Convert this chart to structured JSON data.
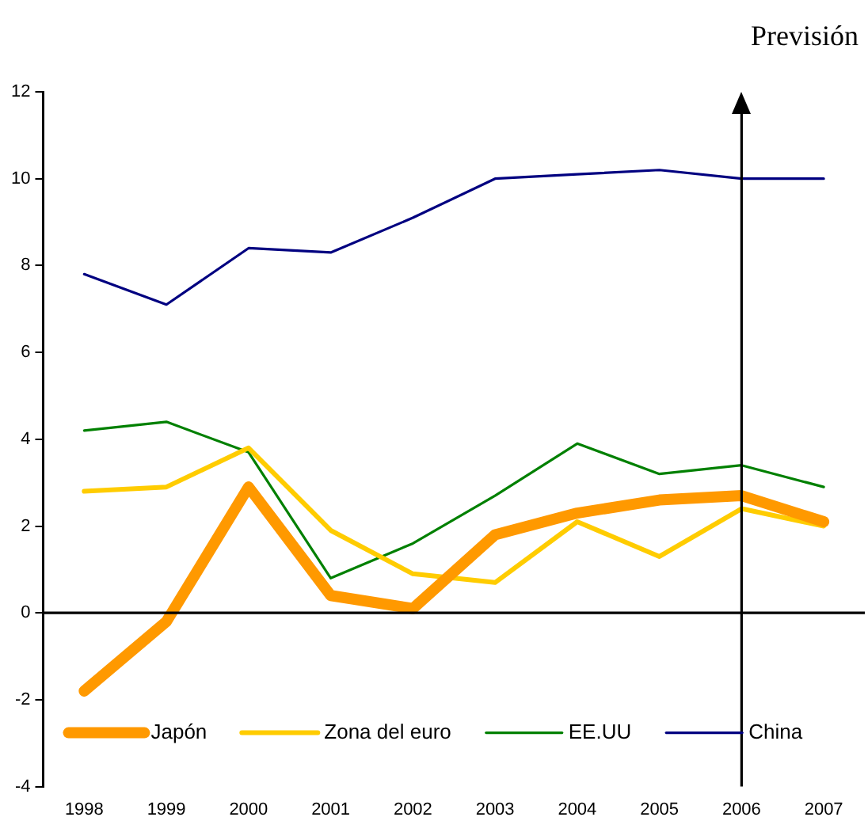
{
  "chart_data": {
    "type": "line",
    "categories": [
      "1998",
      "1999",
      "2000",
      "2001",
      "2002",
      "2003",
      "2004",
      "2005",
      "2006",
      "2007"
    ],
    "series": [
      {
        "name": "Japón",
        "color": "#ff9900",
        "values": [
          -1.8,
          -0.2,
          2.9,
          0.4,
          0.1,
          1.8,
          2.3,
          2.6,
          2.7,
          2.1
        ]
      },
      {
        "name": "Zona del euro",
        "color": "#ffcc00",
        "values": [
          2.8,
          2.9,
          3.8,
          1.9,
          0.9,
          0.7,
          2.1,
          1.3,
          2.4,
          2.0
        ]
      },
      {
        "name": "EE.UU",
        "color": "#008000",
        "values": [
          4.2,
          4.4,
          3.7,
          0.8,
          1.6,
          2.7,
          3.9,
          3.2,
          3.4,
          2.9
        ]
      },
      {
        "name": "China",
        "color": "#000080",
        "values": [
          7.8,
          7.1,
          8.4,
          8.3,
          9.1,
          10.0,
          10.1,
          10.2,
          10.0,
          10.0
        ]
      }
    ],
    "ylim": [
      -4,
      12
    ],
    "yticks": [
      -4,
      -2,
      0,
      2,
      4,
      6,
      8,
      10,
      12
    ],
    "grid": false,
    "legend": "bottom",
    "marker": "none",
    "line_style": "solid",
    "ref_lines": [
      {
        "axis": "x",
        "value": "2006",
        "label": "Previsión",
        "color": "#000000"
      },
      {
        "axis": "y",
        "value": 0,
        "color": "#000000"
      }
    ]
  }
}
